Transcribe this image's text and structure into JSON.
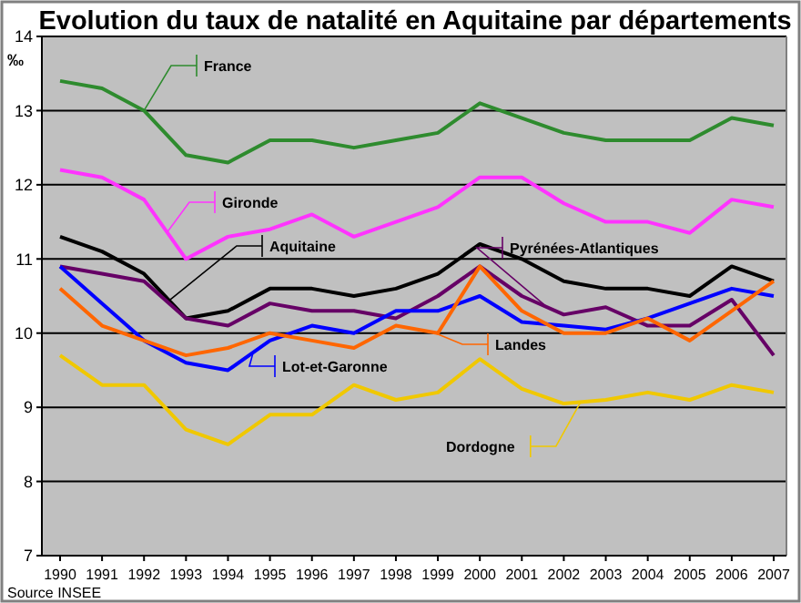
{
  "chart_data": {
    "type": "line",
    "title": "Evolution du taux de natalité en Aquitaine par départements",
    "ylabel": "‰",
    "categories": [
      "1990",
      "1991",
      "1992",
      "1993",
      "1994",
      "1995",
      "1996",
      "1997",
      "1998",
      "1999",
      "2000",
      "2001",
      "2002",
      "2003",
      "2004",
      "2005",
      "2006",
      "2007"
    ],
    "series": [
      {
        "name": "France",
        "color": "#2e8b2e",
        "values": [
          13.4,
          13.3,
          13.0,
          12.4,
          12.3,
          12.6,
          12.6,
          12.5,
          12.6,
          12.7,
          13.1,
          12.9,
          12.7,
          12.6,
          12.6,
          12.6,
          12.9,
          12.8
        ]
      },
      {
        "name": "Gironde",
        "color": "#ff33ff",
        "values": [
          12.2,
          12.1,
          11.8,
          11.0,
          11.3,
          11.4,
          11.6,
          11.3,
          11.5,
          11.7,
          12.1,
          12.1,
          11.75,
          11.5,
          11.5,
          11.35,
          11.8,
          11.7
        ]
      },
      {
        "name": "Aquitaine",
        "color": "#000000",
        "values": [
          11.3,
          11.1,
          10.8,
          10.2,
          10.3,
          10.6,
          10.6,
          10.5,
          10.6,
          10.8,
          11.2,
          11.0,
          10.7,
          10.6,
          10.6,
          10.5,
          10.9,
          10.7
        ]
      },
      {
        "name": "Pyrénées-Atlantiques",
        "color": "#660066",
        "values": [
          10.9,
          10.8,
          10.7,
          10.2,
          10.1,
          10.4,
          10.3,
          10.3,
          10.2,
          10.5,
          10.9,
          10.5,
          10.25,
          10.35,
          10.1,
          10.1,
          10.45,
          9.7
        ]
      },
      {
        "name": "Lot-et-Garonne",
        "color": "#0000ff",
        "values": [
          10.9,
          10.4,
          9.9,
          9.6,
          9.5,
          9.9,
          10.1,
          10.0,
          10.3,
          10.3,
          10.5,
          10.15,
          10.1,
          10.05,
          10.2,
          10.4,
          10.6,
          10.5
        ]
      },
      {
        "name": "Landes",
        "color": "#ff6600",
        "values": [
          10.6,
          10.1,
          9.9,
          9.7,
          9.8,
          10.0,
          9.9,
          9.8,
          10.1,
          10.0,
          10.9,
          10.3,
          10.0,
          10.0,
          10.2,
          9.9,
          10.3,
          10.7
        ]
      },
      {
        "name": "Dordogne",
        "color": "#f0c800",
        "values": [
          9.7,
          9.3,
          9.3,
          8.7,
          8.5,
          8.9,
          8.9,
          9.3,
          9.1,
          9.2,
          9.65,
          9.25,
          9.05,
          9.1,
          9.2,
          9.1,
          9.3,
          9.2
        ]
      }
    ],
    "ylim": [
      7,
      14
    ],
    "yticks": [
      7,
      8,
      9,
      10,
      11,
      12,
      13,
      14
    ],
    "grid": "y",
    "legend": "top",
    "marker": "none",
    "line_style": "solid",
    "annotations": [
      "Source INSEE"
    ]
  }
}
